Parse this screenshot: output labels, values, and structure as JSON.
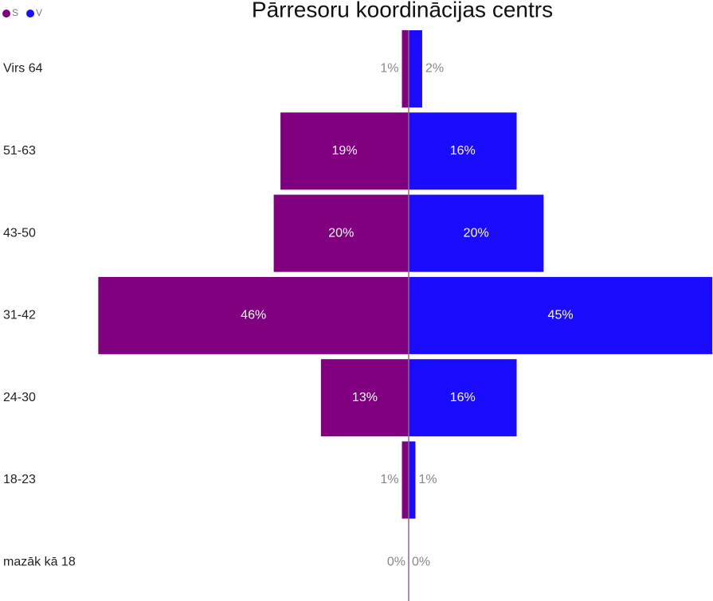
{
  "chart_data": {
    "type": "bar",
    "orientation": "horizontal-pyramid",
    "title": "Pārresoru koordinācijas centrs",
    "categories": [
      "Virs 64",
      "51-63",
      "43-50",
      "31-42",
      "24-30",
      "18-23",
      "mazāk kā 18"
    ],
    "series": [
      {
        "name": "S",
        "color": "#800080",
        "side": "left",
        "values": [
          1,
          19,
          20,
          46,
          13,
          1,
          0
        ],
        "value_labels": [
          "1%",
          "19%",
          "20%",
          "46%",
          "13%",
          "1%",
          "0%"
        ]
      },
      {
        "name": "V",
        "color": "#1a0dff",
        "side": "right",
        "values": [
          2,
          16,
          20,
          45,
          16,
          1,
          0
        ],
        "value_labels": [
          "2%",
          "16%",
          "20%",
          "45%",
          "16%",
          "1%",
          "0%"
        ]
      }
    ],
    "legend": "top-left"
  }
}
